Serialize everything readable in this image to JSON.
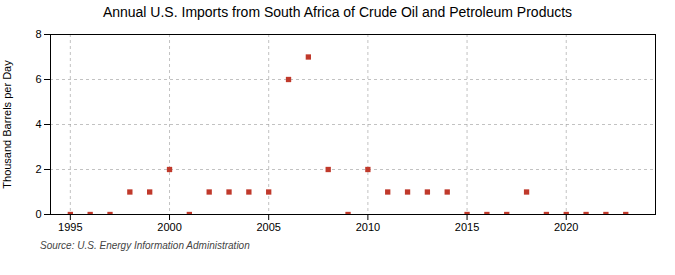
{
  "chart_data": {
    "type": "scatter",
    "title": "Annual U.S. Imports from South Africa of Crude Oil and Petroleum Products",
    "ylabel": "Thousand Barrels per Day",
    "source": "Source: U.S. Energy Information Administration",
    "x": [
      1995,
      1996,
      1997,
      1998,
      1999,
      2000,
      2001,
      2002,
      2003,
      2004,
      2005,
      2006,
      2007,
      2008,
      2009,
      2010,
      2011,
      2012,
      2013,
      2014,
      2015,
      2016,
      2017,
      2018,
      2019,
      2020,
      2021,
      2022,
      2023
    ],
    "values": [
      0,
      0,
      0,
      1,
      1,
      2,
      0,
      1,
      1,
      1,
      1,
      6,
      7,
      2,
      0,
      2,
      1,
      1,
      1,
      1,
      0,
      0,
      0,
      1,
      0,
      0,
      0,
      0,
      0
    ],
    "color": "#c0392b",
    "marker": "square",
    "xlim": [
      1994,
      2024.5
    ],
    "ylim": [
      0,
      8
    ],
    "xticks": [
      1995,
      2000,
      2005,
      2010,
      2015,
      2020
    ],
    "yticks": [
      0,
      2,
      4,
      6,
      8
    ],
    "grid": true
  }
}
